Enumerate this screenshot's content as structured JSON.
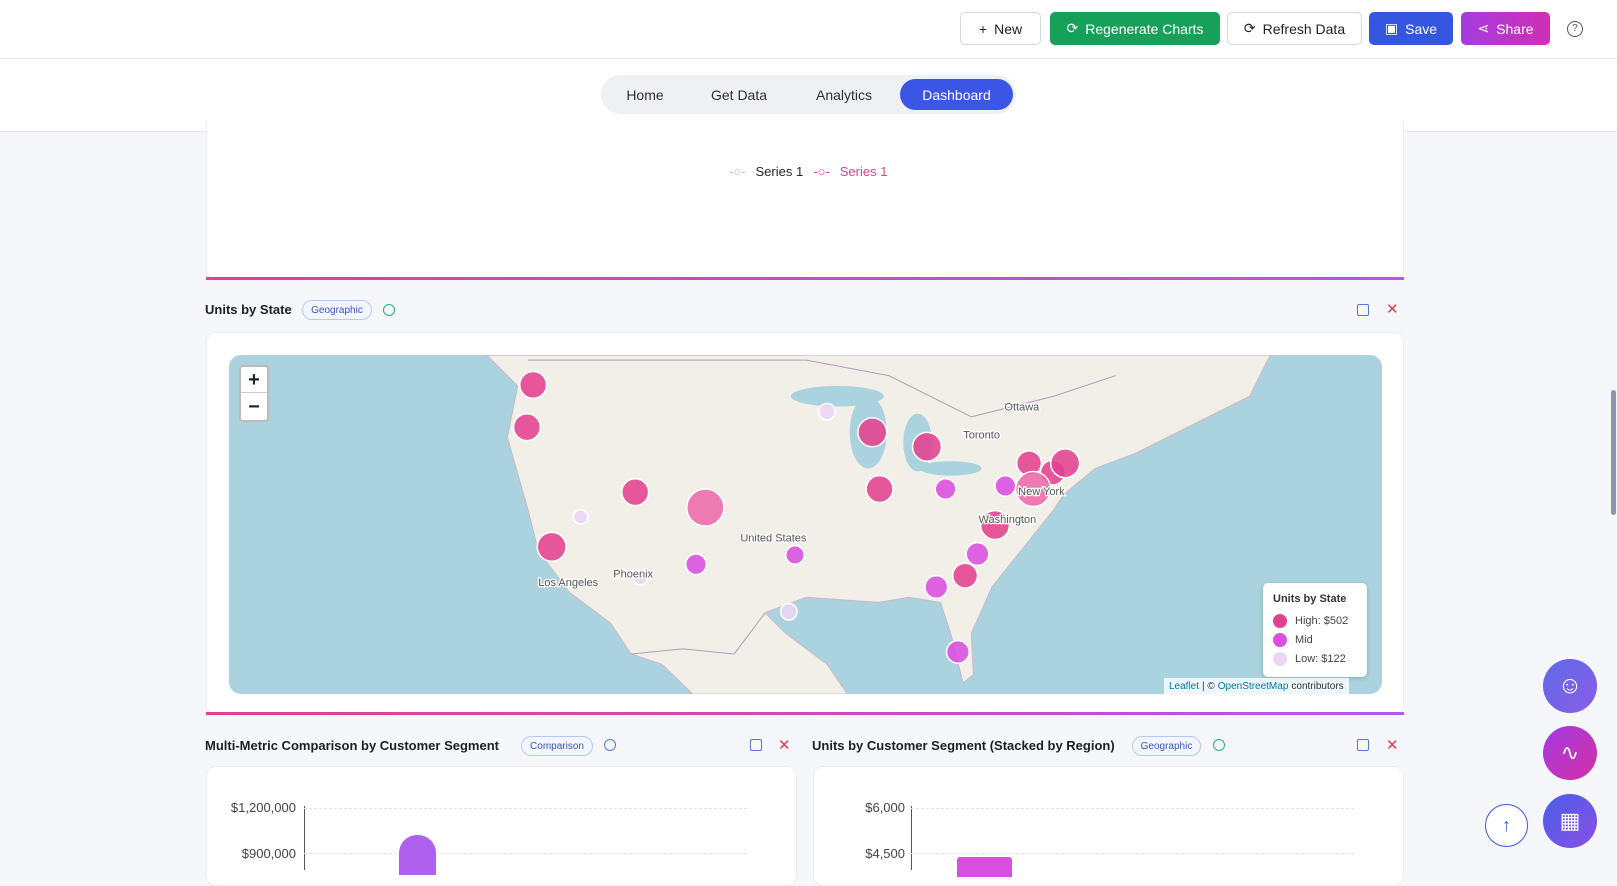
{
  "header": {
    "buttons": [
      "New",
      "Regenerate Charts",
      "Refresh Data",
      "Save",
      "Share"
    ]
  },
  "nav": {
    "tabs": [
      "Home",
      "Get Data",
      "Analytics",
      "Dashboard"
    ]
  },
  "top_panel": {
    "legend": [
      "Series 1",
      "Series 1"
    ]
  },
  "panels": [
    {
      "title": "Units by State",
      "badge": "Geographic",
      "map": {
        "zoom_in": "+",
        "zoom_out": "−",
        "labels": [
          "Ottawa",
          "Toronto",
          "United States",
          "Los Angeles",
          "Phoenix",
          "New York",
          "Washington"
        ],
        "legend": {
          "title": "Units by State",
          "items": [
            "High: $502",
            "Mid",
            "Low: $122"
          ]
        },
        "attribution": {
          "leaflet": "Leaflet",
          "sep": "| ©",
          "osm": "OpenStreetMap",
          "contributors": "contributors"
        }
      }
    },
    {
      "title": "Multi-Metric Comparison by Customer Segment",
      "badge": "Comparison",
      "yticks": [
        "$1,200,000",
        "$900,000"
      ]
    },
    {
      "title": "Units by Customer Segment (Stacked by Region)",
      "badge": "Geographic",
      "yticks": [
        "$6,000",
        "$4,500"
      ]
    }
  ]
}
